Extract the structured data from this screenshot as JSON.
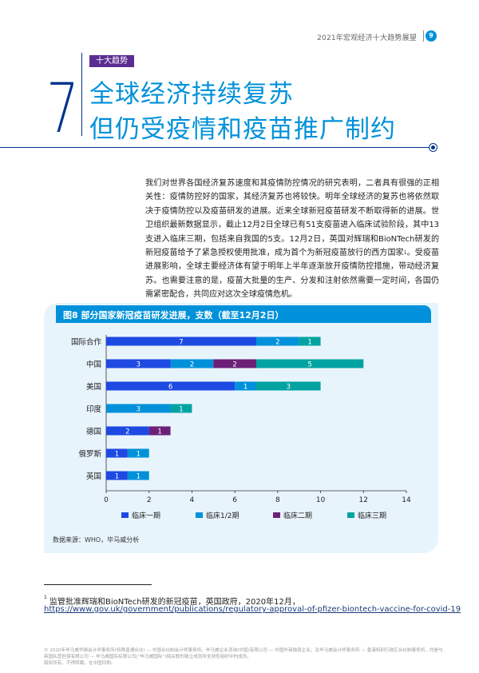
{
  "header": {
    "title": "2021年宏观经济十大趋势展望",
    "page_number": "9"
  },
  "chapter": {
    "number": "7",
    "tag": "十大趋势",
    "title_line1": "全球经济持续复苏",
    "title_line2": "但仍受疫情和疫苗推广制约"
  },
  "body": {
    "paragraph_part1": "我们对世界各国经济复苏速度和其疫情防控情况的研究表明，二者具有很强的正相关性：疫情防控好的国家，其经济复苏也将较快。明年全球经济的复苏也将依然取决于疫情防控以及疫苗研发的进展。近来全球新冠疫苗研发不断取得新的进展。世卫组织最新数据显示，截止12月2日全球已有51支疫苗进入临床试验阶段，其中13支进入临床三期，包括来自我国的5支。12月2日，英国对辉瑞和BioNTech研发的新冠疫苗给予了紧急授权使用批准，成为首个为新冠疫苗放行的西方国家",
    "footnote_ref": "1",
    "paragraph_part2": "。受疫苗进展影响，全球主要经济体有望于明年上半年逐渐放开疫情防控措施，带动经济复苏。也需要注意的是，疫苗大批量的生产、分发和注射依然需要一定时间，各国仍需紧密配合，共同应对这次全球疫情危机。"
  },
  "figure": {
    "title": "图8  部分国家新冠疫苗研发进展，支数（截至12月2日）",
    "source": "数据来源：WHO，毕马威分析"
  },
  "chart_data": {
    "type": "bar",
    "orientation": "horizontal",
    "stacked": true,
    "categories": [
      "国际合作",
      "中国",
      "美国",
      "印度",
      "德国",
      "俄罗斯",
      "英国"
    ],
    "series": [
      {
        "name": "临床一期",
        "color": "#1e49e2",
        "values": [
          7,
          3,
          6,
          0,
          2,
          1,
          1
        ]
      },
      {
        "name": "临床1/2期",
        "color": "#0091da",
        "values": [
          2,
          2,
          1,
          3,
          0,
          1,
          1
        ]
      },
      {
        "name": "临床二期",
        "color": "#6d2077",
        "values": [
          0,
          2,
          0,
          0,
          1,
          0,
          0
        ]
      },
      {
        "name": "临床三期",
        "color": "#00a3a1",
        "values": [
          1,
          5,
          3,
          1,
          0,
          0,
          0
        ]
      }
    ],
    "xlim": [
      0,
      14
    ],
    "xticks": [
      0,
      2,
      4,
      6,
      8,
      10,
      12,
      14
    ],
    "legend": "bottom",
    "grid": false
  },
  "footnote": {
    "marker": "1",
    "text": " 监管批准辉瑞和BioNTech研发的新冠疫苗，英国政府，2020年12月，",
    "url": "https://www.gov.uk/government/publications/regulatory-approval-of-pfizer-biontech-vaccine-for-covid-19"
  },
  "fine_print": {
    "line1": "© 2020年毕马威华振会计师事务所(特殊普通合伙) — 中国合伙制会计师事务所、毕马威企业咨询(中国)有限公司 — 中国外商独资企业，及毕马威会计师事务所 — 香港特别行政区合伙制事务所，均是与英国私营担保有限公司 — 毕马威国际有限公司(“毕马威国际”)相关联的独立成员所全球性组织中的成员。",
    "line2": "版权所有，不得转载。在中国印刷。"
  }
}
